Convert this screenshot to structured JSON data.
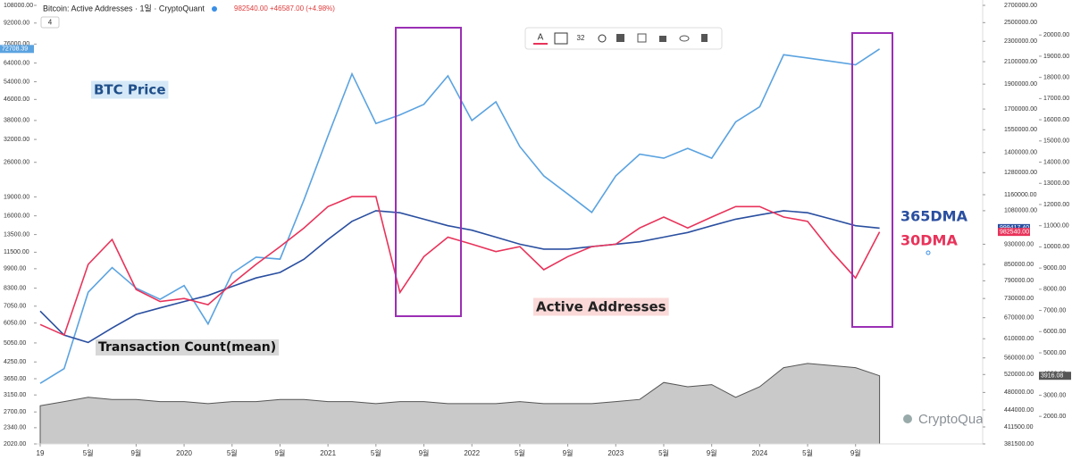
{
  "header": {
    "title": "Bitcoin: Active Addresses · 1일 · CryptoQuant",
    "last": "982540.00",
    "change": "+46587.00 (+4.98%)",
    "collapse": "4"
  },
  "toolbar": {
    "size": "32"
  },
  "watermark": "CryptoQuant",
  "chart_data": {
    "type": "line",
    "yscale": "log",
    "y2scale": "log",
    "y3scale": "linear",
    "annotations": [
      "Active Addresses"
    ],
    "xlim": [
      0,
      71
    ],
    "xticks": [
      {
        "value": 0,
        "label": "19"
      },
      {
        "value": 4,
        "label": "5월"
      },
      {
        "value": 8,
        "label": "9월"
      },
      {
        "value": 12,
        "label": "2020"
      },
      {
        "value": 16,
        "label": "5월"
      },
      {
        "value": 20,
        "label": "9월"
      },
      {
        "value": 24,
        "label": "2021"
      },
      {
        "value": 28,
        "label": "5월"
      },
      {
        "value": 32,
        "label": "9월"
      },
      {
        "value": 36,
        "label": "2022"
      },
      {
        "value": 40,
        "label": "5월"
      },
      {
        "value": 44,
        "label": "9월"
      },
      {
        "value": 48,
        "label": "2023"
      },
      {
        "value": 52,
        "label": "5월"
      },
      {
        "value": 56,
        "label": "9월"
      },
      {
        "value": 60,
        "label": "2024"
      },
      {
        "value": 64,
        "label": "5월"
      },
      {
        "value": 68,
        "label": "9월"
      }
    ],
    "ylim": [
      2020,
      108000
    ],
    "yticks": [
      {
        "value": 108000,
        "label": "108000.00"
      },
      {
        "value": 92000,
        "label": "92000.00"
      },
      {
        "value": 76000,
        "label": "76000.00"
      },
      {
        "value": 64000,
        "label": "64000.00"
      },
      {
        "value": 54000,
        "label": "54000.00"
      },
      {
        "value": 46000,
        "label": "46000.00"
      },
      {
        "value": 38000,
        "label": "38000.00"
      },
      {
        "value": 32000,
        "label": "32000.00"
      },
      {
        "value": 26000,
        "label": "26000.00"
      },
      {
        "value": 19000,
        "label": "19000.00"
      },
      {
        "value": 16000,
        "label": "16000.00"
      },
      {
        "value": 13500,
        "label": "13500.00"
      },
      {
        "value": 11500,
        "label": "11500.00"
      },
      {
        "value": 9900,
        "label": "9900.00"
      },
      {
        "value": 8300,
        "label": "8300.00"
      },
      {
        "value": 7050,
        "label": "7050.00"
      },
      {
        "value": 6050,
        "label": "6050.00"
      },
      {
        "value": 5050,
        "label": "5050.00"
      },
      {
        "value": 4250,
        "label": "4250.00"
      },
      {
        "value": 3650,
        "label": "3650.00"
      },
      {
        "value": 3150,
        "label": "3150.00"
      },
      {
        "value": 2700,
        "label": "2700.00"
      },
      {
        "value": 2340,
        "label": "2340.00"
      },
      {
        "value": 2020,
        "label": "2020.00"
      }
    ],
    "y2lim": [
      381500,
      2700000
    ],
    "y2ticks": [
      {
        "value": 2700000,
        "label": "2700000.00"
      },
      {
        "value": 2500000,
        "label": "2500000.00"
      },
      {
        "value": 2300000,
        "label": "2300000.00"
      },
      {
        "value": 2100000,
        "label": "2100000.00"
      },
      {
        "value": 1900000,
        "label": "1900000.00"
      },
      {
        "value": 1700000,
        "label": "1700000.00"
      },
      {
        "value": 1550000,
        "label": "1550000.00"
      },
      {
        "value": 1400000,
        "label": "1400000.00"
      },
      {
        "value": 1280000,
        "label": "1280000.00"
      },
      {
        "value": 1160000,
        "label": "1160000.00"
      },
      {
        "value": 1080000,
        "label": "1080000.00"
      },
      {
        "value": 930000,
        "label": "930000.00"
      },
      {
        "value": 850000,
        "label": "850000.00"
      },
      {
        "value": 790000,
        "label": "790000.00"
      },
      {
        "value": 730000,
        "label": "730000.00"
      },
      {
        "value": 670000,
        "label": "670000.00"
      },
      {
        "value": 610000,
        "label": "610000.00"
      },
      {
        "value": 560000,
        "label": "560000.00"
      },
      {
        "value": 520000,
        "label": "520000.00"
      },
      {
        "value": 480000,
        "label": "480000.00"
      },
      {
        "value": 444000,
        "label": "444000.00"
      },
      {
        "value": 411500,
        "label": "411500.00"
      },
      {
        "value": 381500,
        "label": "381500.00"
      }
    ],
    "y3lim": [
      700,
      21400
    ],
    "y3ticks": [
      {
        "value": 20000,
        "label": "20000.00"
      },
      {
        "value": 19000,
        "label": "19000.00"
      },
      {
        "value": 18000,
        "label": "18000.00"
      },
      {
        "value": 17000,
        "label": "17000.00"
      },
      {
        "value": 16000,
        "label": "16000.00"
      },
      {
        "value": 15000,
        "label": "15000.00"
      },
      {
        "value": 14000,
        "label": "14000.00"
      },
      {
        "value": 13000,
        "label": "13000.00"
      },
      {
        "value": 12000,
        "label": "12000.00"
      },
      {
        "value": 11000,
        "label": "11000.00"
      },
      {
        "value": 10000,
        "label": "10000.00"
      },
      {
        "value": 9000,
        "label": "9000.00"
      },
      {
        "value": 8000,
        "label": "8000.00"
      },
      {
        "value": 7000,
        "label": "7000.00"
      },
      {
        "value": 6000,
        "label": "6000.00"
      },
      {
        "value": 5000,
        "label": "5000.00"
      },
      {
        "value": 4000,
        "label": "4000.00"
      },
      {
        "value": 3000,
        "label": "3000.00"
      },
      {
        "value": 2000,
        "label": "2000.00"
      }
    ],
    "series": [
      {
        "name": "Transaction Count(mean)",
        "axis": "y3",
        "color": "#555555",
        "values": [
          2500,
          2700,
          2900,
          2800,
          2800,
          2700,
          2700,
          2600,
          2700,
          2700,
          2800,
          2800,
          2700,
          2700,
          2600,
          2700,
          2700,
          2600,
          2600,
          2600,
          2700,
          2600,
          2600,
          2600,
          2700,
          2800,
          3600,
          3400,
          3500,
          2900,
          3400,
          4300,
          4500,
          4400,
          4300,
          3916.08
        ],
        "value_labels": [
          null,
          null,
          null,
          null,
          null,
          null,
          null,
          null,
          null,
          null,
          null,
          null,
          null,
          null,
          null,
          null,
          null,
          null,
          null,
          null,
          null,
          null,
          null,
          null,
          null,
          null,
          null,
          null,
          null,
          null,
          null,
          null,
          null,
          null,
          null,
          "3916.08"
        ]
      },
      {
        "name": "BTC Price",
        "axis": "y",
        "color": "#5ba3e0",
        "values": [
          3500,
          4000,
          8000,
          10000,
          8300,
          7500,
          8500,
          6000,
          9500,
          11000,
          10800,
          18500,
          33000,
          58000,
          37000,
          40000,
          44000,
          57000,
          38000,
          45000,
          30000,
          23000,
          19500,
          16500,
          23000,
          28000,
          27000,
          29500,
          27000,
          37500,
          43000,
          69000,
          67000,
          65000,
          63000,
          72708.39
        ],
        "value_labels": [
          null,
          null,
          null,
          null,
          null,
          null,
          null,
          null,
          null,
          null,
          null,
          null,
          null,
          null,
          null,
          null,
          null,
          null,
          null,
          null,
          null,
          null,
          null,
          null,
          null,
          null,
          null,
          null,
          null,
          null,
          null,
          null,
          null,
          null,
          null,
          "72708.39"
        ]
      },
      {
        "name": "365DMA",
        "axis": "y2",
        "color": "#2a4fa0",
        "values": [
          690000,
          620000,
          600000,
          640000,
          680000,
          700000,
          720000,
          740000,
          770000,
          800000,
          820000,
          870000,
          950000,
          1030000,
          1080000,
          1070000,
          1040000,
          1010000,
          990000,
          960000,
          930000,
          910000,
          910000,
          920000,
          930000,
          940000,
          960000,
          980000,
          1010000,
          1040000,
          1060000,
          1080000,
          1070000,
          1040000,
          1010000,
          999417.4
        ],
        "value_labels": [
          null,
          null,
          null,
          null,
          null,
          null,
          null,
          null,
          null,
          null,
          null,
          null,
          null,
          null,
          null,
          null,
          null,
          null,
          null,
          null,
          null,
          null,
          null,
          null,
          null,
          null,
          null,
          null,
          null,
          null,
          null,
          null,
          null,
          null,
          null,
          "999417.40"
        ]
      },
      {
        "name": "30DMA",
        "axis": "y2",
        "color": "#e8335a",
        "values": [
          650000,
          620000,
          850000,
          950000,
          760000,
          720000,
          730000,
          710000,
          780000,
          850000,
          920000,
          1000000,
          1100000,
          1150000,
          1150000,
          750000,
          880000,
          960000,
          930000,
          900000,
          920000,
          830000,
          880000,
          920000,
          930000,
          1000000,
          1050000,
          1000000,
          1050000,
          1100000,
          1100000,
          1050000,
          1030000,
          900000,
          800000,
          982540
        ],
        "value_labels": [
          null,
          null,
          null,
          null,
          null,
          null,
          null,
          null,
          null,
          null,
          null,
          null,
          null,
          null,
          null,
          null,
          null,
          null,
          null,
          null,
          null,
          null,
          null,
          null,
          null,
          null,
          null,
          null,
          null,
          null,
          null,
          null,
          null,
          null,
          null,
          "982540.00"
        ]
      }
    ]
  }
}
